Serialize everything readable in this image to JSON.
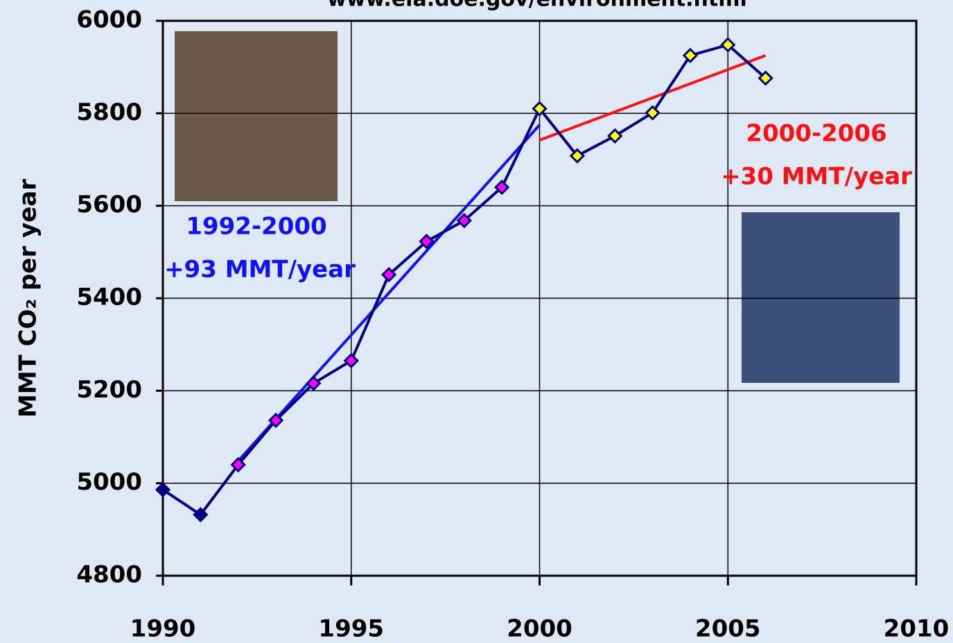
{
  "chart_data": {
    "type": "line",
    "title": "www.eia.doe.gov/environment.html",
    "y_label": "MMT CO₂ per year",
    "x": [
      1990,
      1991,
      1992,
      1993,
      1994,
      1995,
      1996,
      1997,
      1998,
      1999,
      2000,
      2001,
      2002,
      2003,
      2004,
      2005,
      2006
    ],
    "values": [
      4986,
      4932,
      5040,
      5136,
      5216,
      5265,
      5451,
      5523,
      5568,
      5640,
      5810,
      5708,
      5751,
      5801,
      5925,
      5948,
      5876
    ],
    "color": "#000080",
    "marker_colors": [
      "#000080",
      "#000080",
      "#ff00ff",
      "#ff00ff",
      "#ff00ff",
      "#ff00ff",
      "#ff00ff",
      "#ff00ff",
      "#ff00ff",
      "#ff00ff",
      "#ffff00",
      "#ffff00",
      "#ffff00",
      "#ffff00",
      "#ffff00",
      "#ffff00",
      "#ffff00"
    ],
    "trend_lines": [
      {
        "x": [
          1992,
          2000
        ],
        "values": [
          5048,
          5775
        ],
        "color": "#1010ff"
      },
      {
        "x": [
          2000,
          2006
        ],
        "values": [
          5742,
          5925
        ],
        "color": "#ff1010"
      }
    ],
    "annotations": [
      {
        "text": "1992-2000",
        "color": "#1010ff"
      },
      {
        "text": "+93 MMT/year",
        "color": "#1010ff"
      },
      {
        "text": "2000-2006",
        "color": "#ff1010"
      },
      {
        "text": "+30 MMT/year",
        "color": "#ff1010"
      }
    ],
    "xlim": [
      1990,
      2010
    ],
    "xticks": [
      1990,
      1995,
      2000,
      2005,
      2010
    ],
    "ylim": [
      4800,
      6000
    ],
    "yticks": [
      4800,
      5000,
      5200,
      5400,
      5600,
      5800,
      6000
    ],
    "grid": true
  }
}
